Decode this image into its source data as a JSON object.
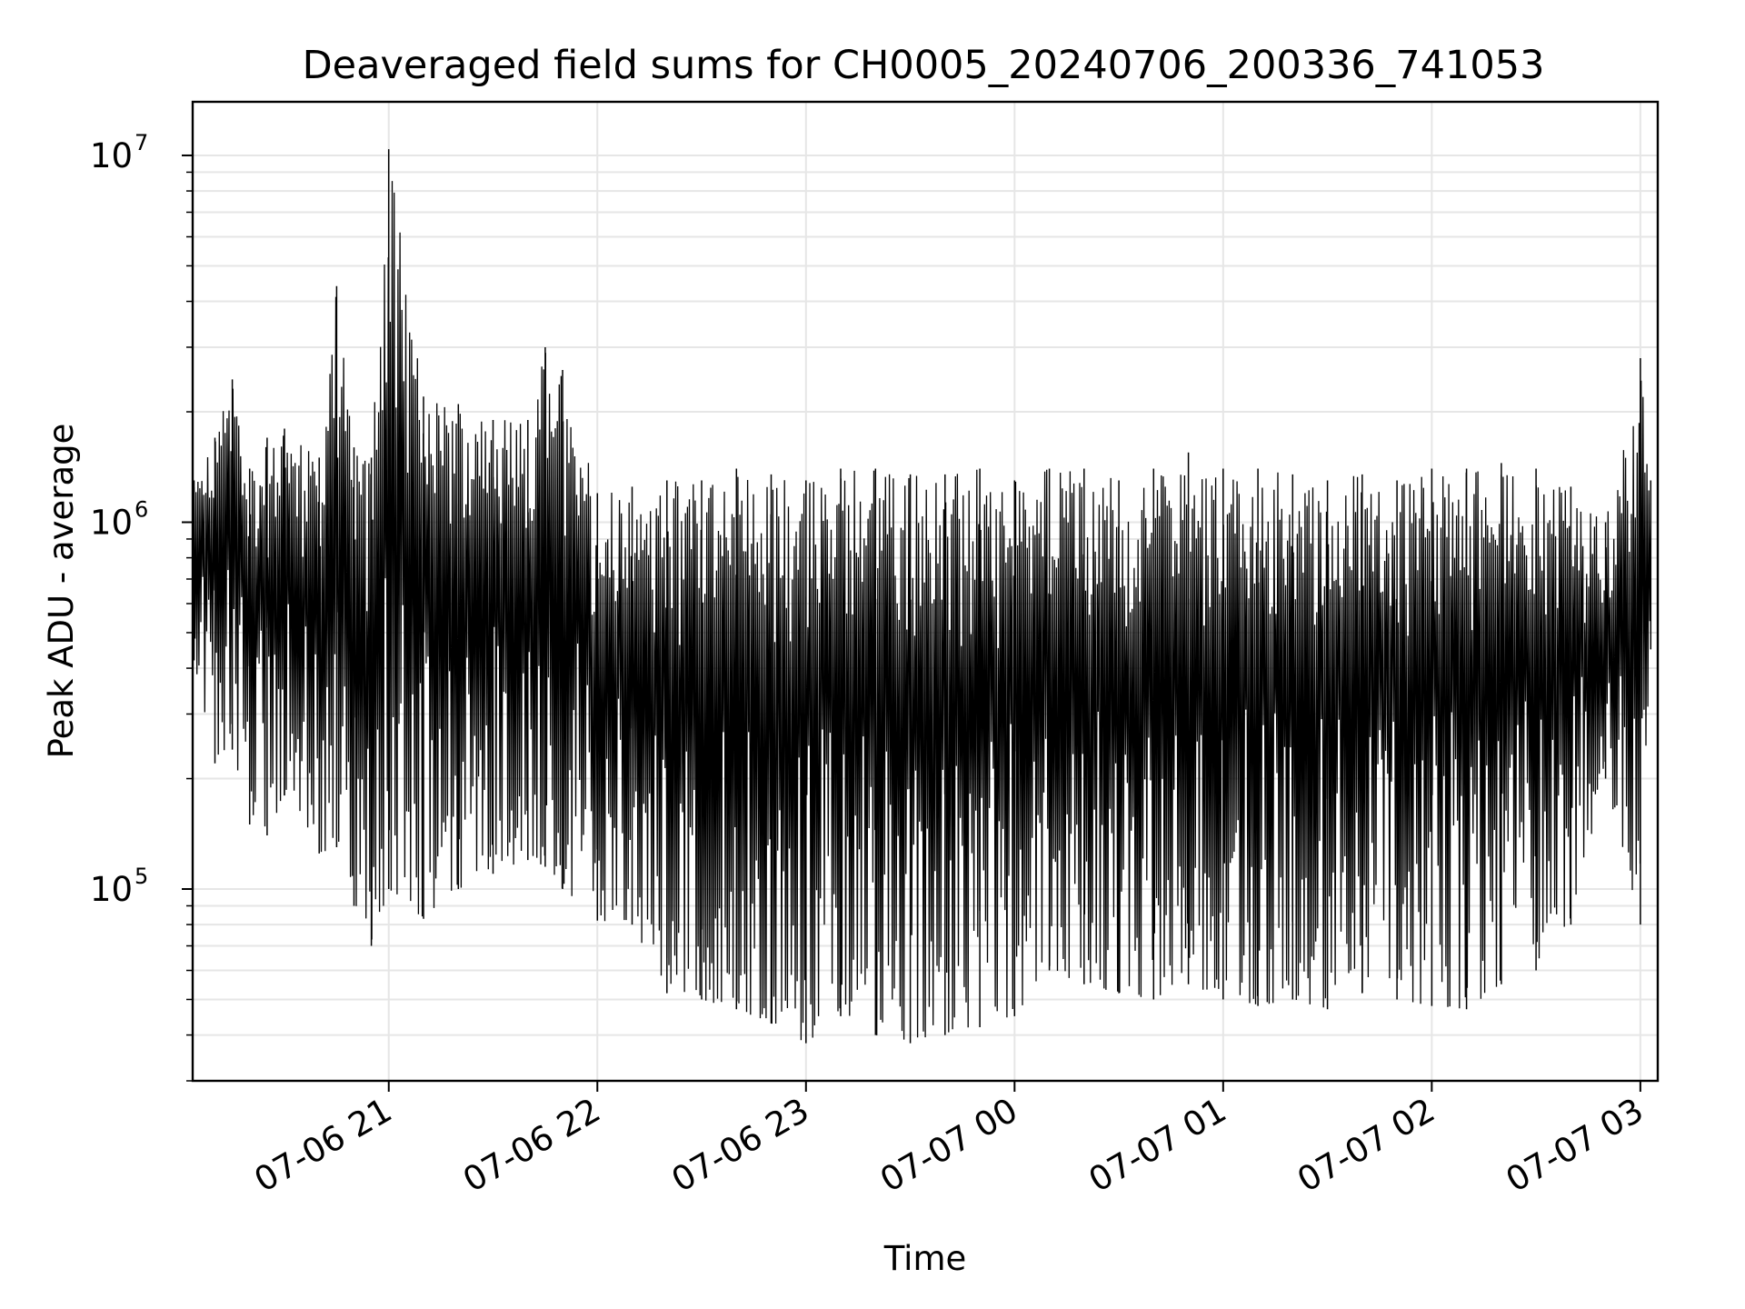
{
  "chart_data": {
    "type": "line",
    "title": "Deaveraged field sums for CH0005_20240706_200336_741053",
    "xlabel": "Time",
    "ylabel": "Peak ADU - average",
    "y_scale": "log",
    "ylim": [
      30000,
      14000000
    ],
    "xlim": [
      "2024-07-06 20:03:36",
      "2024-07-07 03:05:00"
    ],
    "x_ticks": [
      "07-06 21",
      "07-06 22",
      "07-06 23",
      "07-07 00",
      "07-07 01",
      "07-07 02",
      "07-07 03"
    ],
    "y_ticks": [
      {
        "base": "10",
        "exp": "5",
        "value": 100000
      },
      {
        "base": "10",
        "exp": "6",
        "value": 1000000
      },
      {
        "base": "10",
        "exp": "7",
        "value": 10000000
      }
    ],
    "grid": true,
    "line_color": "#000000",
    "series": [
      {
        "x": [
          "2024-07-06 20:04",
          "2024-07-06 20:10",
          "2024-07-06 20:15",
          "2024-07-06 20:20",
          "2024-07-06 20:25",
          "2024-07-06 20:30",
          "2024-07-06 20:40",
          "2024-07-06 20:45",
          "2024-07-06 20:50",
          "2024-07-06 20:55",
          "2024-07-06 21:00",
          "2024-07-06 21:10",
          "2024-07-06 21:20",
          "2024-07-06 21:30",
          "2024-07-06 21:40",
          "2024-07-06 21:45",
          "2024-07-06 21:50",
          "2024-07-06 22:00",
          "2024-07-06 22:10",
          "2024-07-06 22:20",
          "2024-07-06 22:30",
          "2024-07-06 22:40",
          "2024-07-06 22:50",
          "2024-07-06 23:00",
          "2024-07-06 23:10",
          "2024-07-06 23:20",
          "2024-07-06 23:30",
          "2024-07-06 23:40",
          "2024-07-06 23:50",
          "2024-07-07 00:00",
          "2024-07-07 00:10",
          "2024-07-07 00:20",
          "2024-07-07 00:30",
          "2024-07-07 00:40",
          "2024-07-07 00:50",
          "2024-07-07 01:00",
          "2024-07-07 01:10",
          "2024-07-07 01:20",
          "2024-07-07 01:30",
          "2024-07-07 01:40",
          "2024-07-07 01:50",
          "2024-07-07 02:00",
          "2024-07-07 02:10",
          "2024-07-07 02:20",
          "2024-07-07 02:30",
          "2024-07-07 02:40",
          "2024-07-07 02:50",
          "2024-07-07 03:00",
          "2024-07-07 03:03"
        ],
        "upper": [
          1300000,
          1700000,
          2450000,
          1400000,
          1700000,
          1800000,
          1500000,
          4400000,
          1600000,
          1500000,
          10400000,
          2200000,
          2100000,
          1900000,
          1900000,
          3000000,
          2600000,
          1200000,
          1250000,
          1300000,
          1300000,
          1400000,
          1350000,
          1300000,
          1400000,
          1400000,
          1350000,
          1350000,
          1400000,
          1300000,
          1400000,
          1400000,
          1300000,
          1400000,
          1550000,
          1400000,
          1400000,
          1350000,
          1300000,
          1350000,
          1300000,
          1400000,
          1400000,
          1450000,
          1400000,
          1250000,
          1000000,
          2800000,
          1300000
        ],
        "lower": [
          420000,
          220000,
          240000,
          150000,
          140000,
          180000,
          125000,
          130000,
          90000,
          70000,
          100000,
          83000,
          100000,
          110000,
          120000,
          115000,
          100000,
          82000,
          80000,
          52000,
          50000,
          47000,
          43000,
          38000,
          45000,
          40000,
          38000,
          40000,
          42000,
          45000,
          60000,
          55000,
          52000,
          50000,
          55000,
          50000,
          48000,
          50000,
          47000,
          52000,
          50000,
          48000,
          47000,
          55000,
          60000,
          80000,
          200000,
          80000,
          450000
        ]
      }
    ]
  }
}
